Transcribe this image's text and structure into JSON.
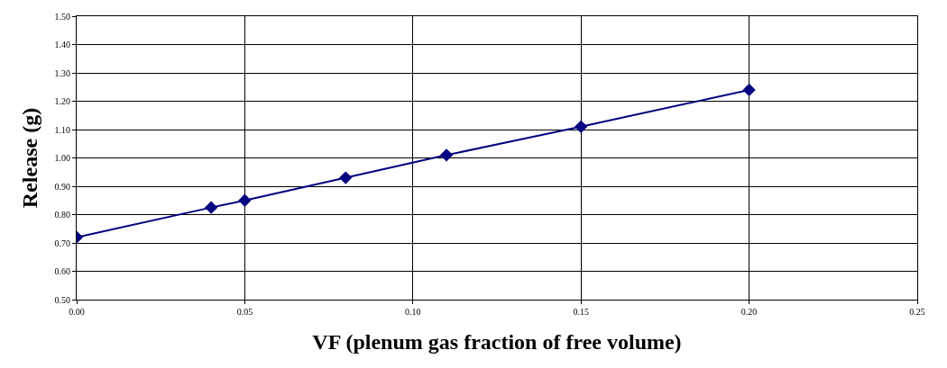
{
  "chart_data": {
    "type": "line",
    "xlabel": "VF (plenum gas fraction of free volume)",
    "ylabel": "Release (g)",
    "x": [
      0.0,
      0.04,
      0.05,
      0.08,
      0.11,
      0.15,
      0.2
    ],
    "series": [
      {
        "color": "#000080",
        "values": [
          0.72,
          0.825,
          0.85,
          0.93,
          1.01,
          1.11,
          1.24
        ]
      }
    ],
    "xlim": [
      0,
      0.25
    ],
    "xticks": [
      {
        "value": 0,
        "label": "0.00"
      },
      {
        "value": 0.05,
        "label": "0.05"
      },
      {
        "value": 0.1,
        "label": "0.10"
      },
      {
        "value": 0.15,
        "label": "0.15"
      },
      {
        "value": 0.2,
        "label": "0.20"
      },
      {
        "value": 0.25,
        "label": "0.25"
      }
    ],
    "ylim": [
      0.5,
      1.5
    ],
    "yticks": [
      {
        "value": 0.5,
        "label": "0.50"
      },
      {
        "value": 0.6,
        "label": "0.60"
      },
      {
        "value": 0.7,
        "label": "0.70"
      },
      {
        "value": 0.8,
        "label": "0.80"
      },
      {
        "value": 0.9,
        "label": "0.90"
      },
      {
        "value": 1.0,
        "label": "1.00"
      },
      {
        "value": 1.1,
        "label": "1.10"
      },
      {
        "value": 1.2,
        "label": "1.20"
      },
      {
        "value": 1.3,
        "label": "1.30"
      },
      {
        "value": 1.4,
        "label": "1.40"
      },
      {
        "value": 1.5,
        "label": "1.50"
      }
    ],
    "grid": true,
    "marker": "diamond",
    "line_style": "solid",
    "legend": false
  }
}
